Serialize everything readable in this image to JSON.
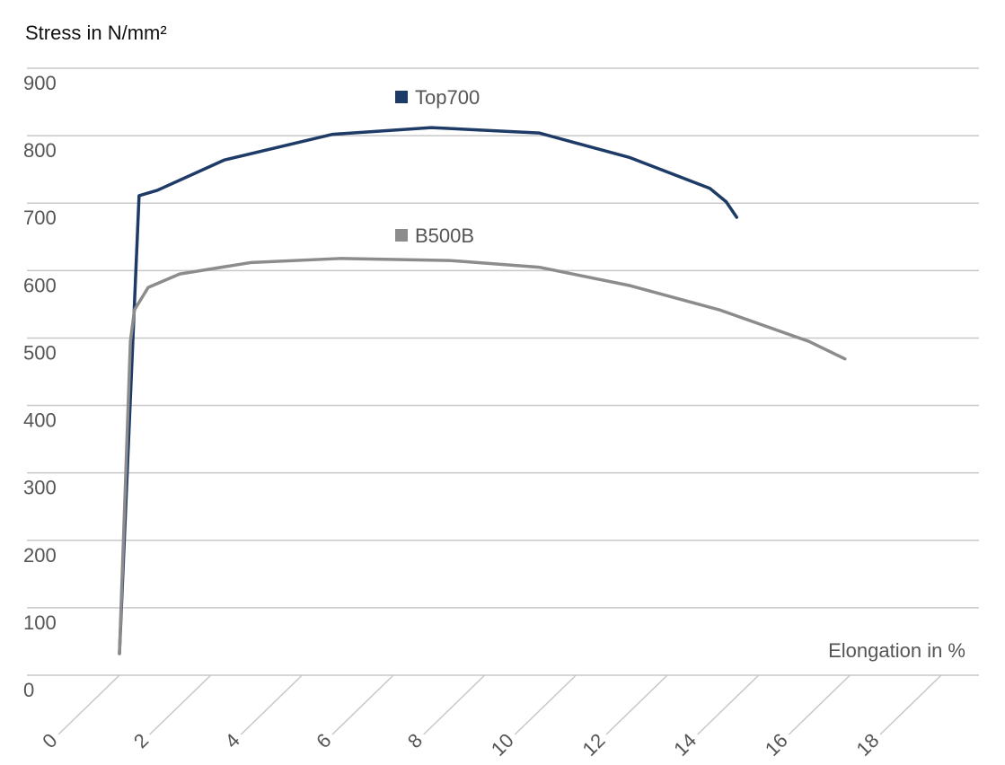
{
  "chart_data": {
    "type": "line",
    "y_label": "Stress in N/mm²",
    "x_label": "Elongation in %",
    "xlim": [
      0,
      18
    ],
    "xticks": [
      0,
      2,
      4,
      6,
      8,
      10,
      12,
      14,
      16,
      18
    ],
    "ylim": [
      0,
      900
    ],
    "yticks": [
      0,
      100,
      200,
      300,
      400,
      500,
      600,
      700,
      800,
      900
    ],
    "grid": true,
    "series": [
      {
        "name": "Top700",
        "color": "#1e3a66",
        "x": [
          0,
          0.43,
          0.83,
          2.3,
          4.67,
          6.83,
          9.19,
          11.16,
          12.93,
          13.29,
          13.52
        ],
        "values": [
          32,
          711,
          719,
          764,
          802,
          812,
          804,
          768,
          722,
          702,
          679
        ]
      },
      {
        "name": "B500B",
        "color": "#8c8c8c",
        "x": [
          0,
          0.24,
          0.33,
          0.63,
          1.32,
          2.89,
          4.86,
          7.22,
          9.19,
          11.16,
          13.13,
          15.1,
          15.89
        ],
        "values": [
          32,
          495,
          542,
          575,
          595,
          612,
          618,
          615,
          605,
          578,
          542,
          495,
          469
        ]
      }
    ]
  }
}
